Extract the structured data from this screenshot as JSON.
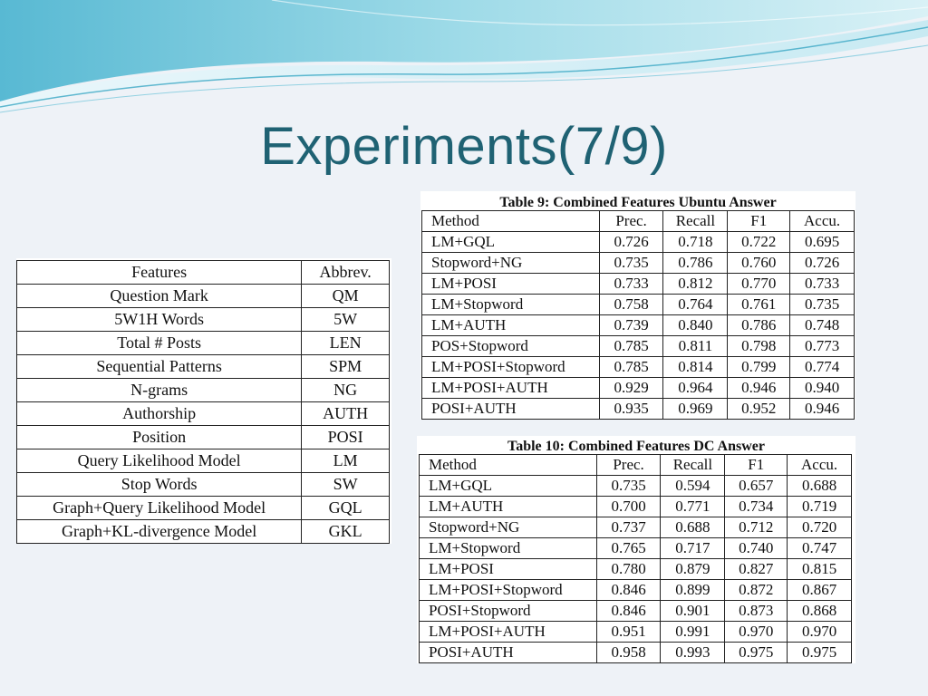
{
  "slide": {
    "title": "Experiments(7/9)"
  },
  "features_table": {
    "headers": [
      "Features",
      "Abbrev."
    ],
    "rows": [
      [
        "Question Mark",
        "QM"
      ],
      [
        "5W1H Words",
        "5W"
      ],
      [
        "Total # Posts",
        "LEN"
      ],
      [
        "Sequential Patterns",
        "SPM"
      ],
      [
        "N-grams",
        "NG"
      ],
      [
        "Authorship",
        "AUTH"
      ],
      [
        "Position",
        "POSI"
      ],
      [
        "Query Likelihood Model",
        "LM"
      ],
      [
        "Stop Words",
        "SW"
      ],
      [
        "Graph+Query Likelihood Model",
        "GQL"
      ],
      [
        "Graph+KL-divergence Model",
        "GKL"
      ]
    ]
  },
  "table9": {
    "caption": "Table 9: Combined Features Ubuntu Answer",
    "headers": [
      "Method",
      "Prec.",
      "Recall",
      "F1",
      "Accu."
    ],
    "rows": [
      [
        "LM+GQL",
        "0.726",
        "0.718",
        "0.722",
        "0.695"
      ],
      [
        "Stopword+NG",
        "0.735",
        "0.786",
        "0.760",
        "0.726"
      ],
      [
        "LM+POSI",
        "0.733",
        "0.812",
        "0.770",
        "0.733"
      ],
      [
        "LM+Stopword",
        "0.758",
        "0.764",
        "0.761",
        "0.735"
      ],
      [
        "LM+AUTH",
        "0.739",
        "0.840",
        "0.786",
        "0.748"
      ],
      [
        "POS+Stopword",
        "0.785",
        "0.811",
        "0.798",
        "0.773"
      ],
      [
        "LM+POSI+Stopword",
        "0.785",
        "0.814",
        "0.799",
        "0.774"
      ],
      [
        "LM+POSI+AUTH",
        "0.929",
        "0.964",
        "0.946",
        "0.940"
      ],
      [
        "POSI+AUTH",
        "0.935",
        "0.969",
        "0.952",
        "0.946"
      ]
    ]
  },
  "table10": {
    "caption": "Table 10: Combined Features DC Answer",
    "headers": [
      "Method",
      "Prec.",
      "Recall",
      "F1",
      "Accu."
    ],
    "rows": [
      [
        "LM+GQL",
        "0.735",
        "0.594",
        "0.657",
        "0.688"
      ],
      [
        "LM+AUTH",
        "0.700",
        "0.771",
        "0.734",
        "0.719"
      ],
      [
        "Stopword+NG",
        "0.737",
        "0.688",
        "0.712",
        "0.720"
      ],
      [
        "LM+Stopword",
        "0.765",
        "0.717",
        "0.740",
        "0.747"
      ],
      [
        "LM+POSI",
        "0.780",
        "0.879",
        "0.827",
        "0.815"
      ],
      [
        "LM+POSI+Stopword",
        "0.846",
        "0.899",
        "0.872",
        "0.867"
      ],
      [
        "POSI+Stopword",
        "0.846",
        "0.901",
        "0.873",
        "0.868"
      ],
      [
        "LM+POSI+AUTH",
        "0.951",
        "0.991",
        "0.970",
        "0.970"
      ],
      [
        "POSI+AUTH",
        "0.958",
        "0.993",
        "0.975",
        "0.975"
      ]
    ]
  },
  "colors": {
    "title": "#1f6273",
    "swoosh_light": "#bfe6ef",
    "swoosh_dark": "#3ba7c4"
  }
}
